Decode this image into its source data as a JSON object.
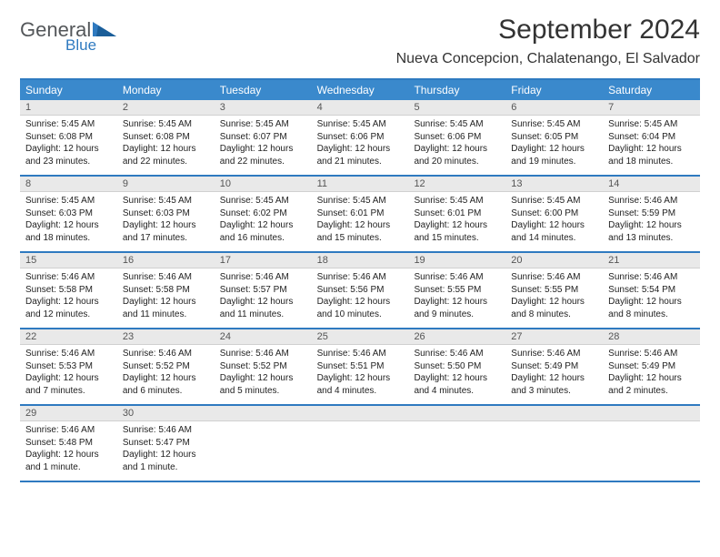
{
  "branding": {
    "logo_word1": "General",
    "logo_word2": "Blue",
    "logo_color1": "#54575a",
    "logo_color2": "#2f7ac0",
    "triangle_color": "#2f7ac0"
  },
  "header": {
    "month_title": "September 2024",
    "location": "Nueva Concepcion, Chalatenango, El Salvador"
  },
  "colors": {
    "header_band": "#3a89cc",
    "rule": "#2f7ac0",
    "date_band": "#e9e9e9",
    "background": "#ffffff",
    "text": "#222222",
    "muted_text": "#555555"
  },
  "typography": {
    "title_fontsize": 30,
    "location_fontsize": 16,
    "dow_fontsize": 12,
    "date_fontsize": 11,
    "body_fontsize": 10
  },
  "calendar": {
    "days_of_week": [
      "Sunday",
      "Monday",
      "Tuesday",
      "Wednesday",
      "Thursday",
      "Friday",
      "Saturday"
    ],
    "weeks": [
      {
        "dates": [
          "1",
          "2",
          "3",
          "4",
          "5",
          "6",
          "7"
        ],
        "cells": [
          {
            "sunrise": "Sunrise: 5:45 AM",
            "sunset": "Sunset: 6:08 PM",
            "daylight": "Daylight: 12 hours and 23 minutes."
          },
          {
            "sunrise": "Sunrise: 5:45 AM",
            "sunset": "Sunset: 6:08 PM",
            "daylight": "Daylight: 12 hours and 22 minutes."
          },
          {
            "sunrise": "Sunrise: 5:45 AM",
            "sunset": "Sunset: 6:07 PM",
            "daylight": "Daylight: 12 hours and 22 minutes."
          },
          {
            "sunrise": "Sunrise: 5:45 AM",
            "sunset": "Sunset: 6:06 PM",
            "daylight": "Daylight: 12 hours and 21 minutes."
          },
          {
            "sunrise": "Sunrise: 5:45 AM",
            "sunset": "Sunset: 6:06 PM",
            "daylight": "Daylight: 12 hours and 20 minutes."
          },
          {
            "sunrise": "Sunrise: 5:45 AM",
            "sunset": "Sunset: 6:05 PM",
            "daylight": "Daylight: 12 hours and 19 minutes."
          },
          {
            "sunrise": "Sunrise: 5:45 AM",
            "sunset": "Sunset: 6:04 PM",
            "daylight": "Daylight: 12 hours and 18 minutes."
          }
        ]
      },
      {
        "dates": [
          "8",
          "9",
          "10",
          "11",
          "12",
          "13",
          "14"
        ],
        "cells": [
          {
            "sunrise": "Sunrise: 5:45 AM",
            "sunset": "Sunset: 6:03 PM",
            "daylight": "Daylight: 12 hours and 18 minutes."
          },
          {
            "sunrise": "Sunrise: 5:45 AM",
            "sunset": "Sunset: 6:03 PM",
            "daylight": "Daylight: 12 hours and 17 minutes."
          },
          {
            "sunrise": "Sunrise: 5:45 AM",
            "sunset": "Sunset: 6:02 PM",
            "daylight": "Daylight: 12 hours and 16 minutes."
          },
          {
            "sunrise": "Sunrise: 5:45 AM",
            "sunset": "Sunset: 6:01 PM",
            "daylight": "Daylight: 12 hours and 15 minutes."
          },
          {
            "sunrise": "Sunrise: 5:45 AM",
            "sunset": "Sunset: 6:01 PM",
            "daylight": "Daylight: 12 hours and 15 minutes."
          },
          {
            "sunrise": "Sunrise: 5:45 AM",
            "sunset": "Sunset: 6:00 PM",
            "daylight": "Daylight: 12 hours and 14 minutes."
          },
          {
            "sunrise": "Sunrise: 5:46 AM",
            "sunset": "Sunset: 5:59 PM",
            "daylight": "Daylight: 12 hours and 13 minutes."
          }
        ]
      },
      {
        "dates": [
          "15",
          "16",
          "17",
          "18",
          "19",
          "20",
          "21"
        ],
        "cells": [
          {
            "sunrise": "Sunrise: 5:46 AM",
            "sunset": "Sunset: 5:58 PM",
            "daylight": "Daylight: 12 hours and 12 minutes."
          },
          {
            "sunrise": "Sunrise: 5:46 AM",
            "sunset": "Sunset: 5:58 PM",
            "daylight": "Daylight: 12 hours and 11 minutes."
          },
          {
            "sunrise": "Sunrise: 5:46 AM",
            "sunset": "Sunset: 5:57 PM",
            "daylight": "Daylight: 12 hours and 11 minutes."
          },
          {
            "sunrise": "Sunrise: 5:46 AM",
            "sunset": "Sunset: 5:56 PM",
            "daylight": "Daylight: 12 hours and 10 minutes."
          },
          {
            "sunrise": "Sunrise: 5:46 AM",
            "sunset": "Sunset: 5:55 PM",
            "daylight": "Daylight: 12 hours and 9 minutes."
          },
          {
            "sunrise": "Sunrise: 5:46 AM",
            "sunset": "Sunset: 5:55 PM",
            "daylight": "Daylight: 12 hours and 8 minutes."
          },
          {
            "sunrise": "Sunrise: 5:46 AM",
            "sunset": "Sunset: 5:54 PM",
            "daylight": "Daylight: 12 hours and 8 minutes."
          }
        ]
      },
      {
        "dates": [
          "22",
          "23",
          "24",
          "25",
          "26",
          "27",
          "28"
        ],
        "cells": [
          {
            "sunrise": "Sunrise: 5:46 AM",
            "sunset": "Sunset: 5:53 PM",
            "daylight": "Daylight: 12 hours and 7 minutes."
          },
          {
            "sunrise": "Sunrise: 5:46 AM",
            "sunset": "Sunset: 5:52 PM",
            "daylight": "Daylight: 12 hours and 6 minutes."
          },
          {
            "sunrise": "Sunrise: 5:46 AM",
            "sunset": "Sunset: 5:52 PM",
            "daylight": "Daylight: 12 hours and 5 minutes."
          },
          {
            "sunrise": "Sunrise: 5:46 AM",
            "sunset": "Sunset: 5:51 PM",
            "daylight": "Daylight: 12 hours and 4 minutes."
          },
          {
            "sunrise": "Sunrise: 5:46 AM",
            "sunset": "Sunset: 5:50 PM",
            "daylight": "Daylight: 12 hours and 4 minutes."
          },
          {
            "sunrise": "Sunrise: 5:46 AM",
            "sunset": "Sunset: 5:49 PM",
            "daylight": "Daylight: 12 hours and 3 minutes."
          },
          {
            "sunrise": "Sunrise: 5:46 AM",
            "sunset": "Sunset: 5:49 PM",
            "daylight": "Daylight: 12 hours and 2 minutes."
          }
        ]
      },
      {
        "dates": [
          "29",
          "30",
          "",
          "",
          "",
          "",
          ""
        ],
        "cells": [
          {
            "sunrise": "Sunrise: 5:46 AM",
            "sunset": "Sunset: 5:48 PM",
            "daylight": "Daylight: 12 hours and 1 minute."
          },
          {
            "sunrise": "Sunrise: 5:46 AM",
            "sunset": "Sunset: 5:47 PM",
            "daylight": "Daylight: 12 hours and 1 minute."
          },
          {
            "sunrise": "",
            "sunset": "",
            "daylight": ""
          },
          {
            "sunrise": "",
            "sunset": "",
            "daylight": ""
          },
          {
            "sunrise": "",
            "sunset": "",
            "daylight": ""
          },
          {
            "sunrise": "",
            "sunset": "",
            "daylight": ""
          },
          {
            "sunrise": "",
            "sunset": "",
            "daylight": ""
          }
        ]
      }
    ]
  }
}
